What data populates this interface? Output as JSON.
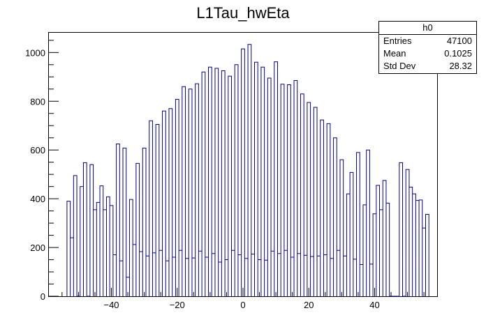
{
  "chart_data": {
    "type": "bar",
    "title": "L1Tau_hwEta",
    "xlabel": "",
    "ylabel": "",
    "xlim": [
      -59,
      59
    ],
    "ylim": [
      0,
      1081
    ],
    "bin_width": 1,
    "x_ticks": [
      -40,
      -20,
      0,
      20,
      40
    ],
    "y_ticks": [
      0,
      200,
      400,
      600,
      800,
      1000
    ],
    "line_color": "#000080",
    "grid": false,
    "bins": [
      {
        "x": -53,
        "y": 390
      },
      {
        "x": -52,
        "y": 240
      },
      {
        "x": -51,
        "y": 495
      },
      {
        "x": -50,
        "y": 0
      },
      {
        "x": -49,
        "y": 450
      },
      {
        "x": -48,
        "y": 548
      },
      {
        "x": -47,
        "y": 0
      },
      {
        "x": -46,
        "y": 540
      },
      {
        "x": -45,
        "y": 355
      },
      {
        "x": -44,
        "y": 385
      },
      {
        "x": -43,
        "y": 453
      },
      {
        "x": -42,
        "y": 355
      },
      {
        "x": -41,
        "y": 408
      },
      {
        "x": -40,
        "y": 372
      },
      {
        "x": -39,
        "y": 170
      },
      {
        "x": -38,
        "y": 625
      },
      {
        "x": -37,
        "y": 145
      },
      {
        "x": -36,
        "y": 608
      },
      {
        "x": -35,
        "y": 78
      },
      {
        "x": -34,
        "y": 397
      },
      {
        "x": -33,
        "y": 212
      },
      {
        "x": -32,
        "y": 545
      },
      {
        "x": -31,
        "y": 183
      },
      {
        "x": -30,
        "y": 608
      },
      {
        "x": -29,
        "y": 165
      },
      {
        "x": -28,
        "y": 720
      },
      {
        "x": -27,
        "y": 178
      },
      {
        "x": -26,
        "y": 705
      },
      {
        "x": -25,
        "y": 188
      },
      {
        "x": -24,
        "y": 760
      },
      {
        "x": -23,
        "y": 145
      },
      {
        "x": -22,
        "y": 770
      },
      {
        "x": -21,
        "y": 160
      },
      {
        "x": -20,
        "y": 808
      },
      {
        "x": -19,
        "y": 188
      },
      {
        "x": -18,
        "y": 860
      },
      {
        "x": -17,
        "y": 155
      },
      {
        "x": -16,
        "y": 850
      },
      {
        "x": -15,
        "y": 157
      },
      {
        "x": -14,
        "y": 872
      },
      {
        "x": -13,
        "y": 185
      },
      {
        "x": -12,
        "y": 920
      },
      {
        "x": -11,
        "y": 160
      },
      {
        "x": -10,
        "y": 940
      },
      {
        "x": -9,
        "y": 175
      },
      {
        "x": -8,
        "y": 935
      },
      {
        "x": -7,
        "y": 140
      },
      {
        "x": -6,
        "y": 925
      },
      {
        "x": -5,
        "y": 150
      },
      {
        "x": -4,
        "y": 903
      },
      {
        "x": -3,
        "y": 188
      },
      {
        "x": -2,
        "y": 950
      },
      {
        "x": -1,
        "y": 170
      },
      {
        "x": 0,
        "y": 1015
      },
      {
        "x": 1,
        "y": 155
      },
      {
        "x": 2,
        "y": 1033
      },
      {
        "x": 3,
        "y": 173
      },
      {
        "x": 4,
        "y": 960
      },
      {
        "x": 5,
        "y": 150
      },
      {
        "x": 6,
        "y": 940
      },
      {
        "x": 7,
        "y": 148
      },
      {
        "x": 8,
        "y": 895
      },
      {
        "x": 9,
        "y": 185
      },
      {
        "x": 10,
        "y": 962
      },
      {
        "x": 11,
        "y": 175
      },
      {
        "x": 12,
        "y": 870
      },
      {
        "x": 13,
        "y": 188
      },
      {
        "x": 14,
        "y": 868
      },
      {
        "x": 15,
        "y": 160
      },
      {
        "x": 16,
        "y": 885
      },
      {
        "x": 17,
        "y": 175
      },
      {
        "x": 18,
        "y": 830
      },
      {
        "x": 19,
        "y": 168
      },
      {
        "x": 20,
        "y": 795
      },
      {
        "x": 21,
        "y": 163
      },
      {
        "x": 22,
        "y": 775
      },
      {
        "x": 23,
        "y": 165
      },
      {
        "x": 24,
        "y": 723
      },
      {
        "x": 25,
        "y": 170
      },
      {
        "x": 26,
        "y": 708
      },
      {
        "x": 27,
        "y": 155
      },
      {
        "x": 28,
        "y": 650
      },
      {
        "x": 29,
        "y": 188
      },
      {
        "x": 30,
        "y": 560
      },
      {
        "x": 31,
        "y": 165
      },
      {
        "x": 32,
        "y": 420
      },
      {
        "x": 33,
        "y": 508
      },
      {
        "x": 34,
        "y": 152
      },
      {
        "x": 35,
        "y": 590
      },
      {
        "x": 36,
        "y": 130
      },
      {
        "x": 37,
        "y": 375
      },
      {
        "x": 38,
        "y": 600
      },
      {
        "x": 39,
        "y": 132
      },
      {
        "x": 40,
        "y": 338
      },
      {
        "x": 41,
        "y": 455
      },
      {
        "x": 42,
        "y": 355
      },
      {
        "x": 43,
        "y": 475
      },
      {
        "x": 44,
        "y": 382
      },
      {
        "x": 45,
        "y": 0
      },
      {
        "x": 46,
        "y": 0
      },
      {
        "x": 47,
        "y": 0
      },
      {
        "x": 48,
        "y": 548
      },
      {
        "x": 49,
        "y": 0
      },
      {
        "x": 50,
        "y": 520
      },
      {
        "x": 51,
        "y": 448
      },
      {
        "x": 52,
        "y": 420
      },
      {
        "x": 53,
        "y": 393
      },
      {
        "x": 54,
        "y": 395
      },
      {
        "x": 55,
        "y": 280
      },
      {
        "x": 56,
        "y": 336
      }
    ],
    "stats": {
      "name": "h0",
      "rows": [
        {
          "label": "Entries",
          "value": "47100"
        },
        {
          "label": "Mean",
          "value": "0.1025"
        },
        {
          "label": "Std Dev",
          "value": "28.32"
        }
      ]
    }
  }
}
